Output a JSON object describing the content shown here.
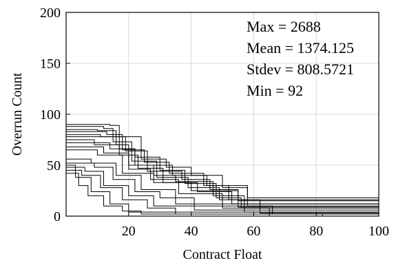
{
  "chart_data": {
    "type": "line",
    "title": "",
    "xlabel": "Contract Float",
    "ylabel": "Overrun Count",
    "xlim": [
      0,
      100
    ],
    "ylim": [
      0,
      200
    ],
    "xticks": [
      20,
      40,
      60,
      80,
      100
    ],
    "yticks": [
      0,
      50,
      100,
      150,
      200
    ],
    "grid": true,
    "annotations": [
      "Max = 2688",
      "Mean = 1374.125",
      "Stdev = 808.5721",
      "Min = 92"
    ],
    "series": [
      {
        "x": [
          0,
          3,
          14,
          17,
          22,
          30,
          38,
          48,
          56,
          65,
          100
        ],
        "y": [
          90,
          90,
          89,
          66,
          58,
          45,
          32,
          18,
          8,
          0,
          0
        ]
      },
      {
        "x": [
          0,
          5,
          12,
          15,
          24,
          32,
          40,
          50,
          58,
          66,
          82,
          100
        ],
        "y": [
          88,
          88,
          86,
          78,
          56,
          48,
          40,
          28,
          10,
          2,
          0,
          0
        ]
      },
      {
        "x": [
          0,
          2,
          10,
          16,
          20,
          28,
          35,
          47,
          57,
          100
        ],
        "y": [
          85,
          85,
          84,
          70,
          50,
          40,
          34,
          20,
          4,
          0
        ]
      },
      {
        "x": [
          0,
          6,
          13,
          18,
          25,
          33,
          44,
          52,
          62,
          100
        ],
        "y": [
          83,
          83,
          80,
          65,
          53,
          42,
          30,
          16,
          3,
          0
        ]
      },
      {
        "x": [
          0,
          4,
          11,
          19,
          26,
          37,
          46,
          55,
          100
        ],
        "y": [
          80,
          80,
          78,
          64,
          44,
          36,
          26,
          9,
          0
        ]
      },
      {
        "x": [
          0,
          8,
          15,
          21,
          29,
          39,
          49,
          100
        ],
        "y": [
          78,
          78,
          73,
          54,
          38,
          28,
          16,
          0
        ]
      },
      {
        "x": [
          0,
          3,
          9,
          17,
          23,
          31,
          42,
          53,
          100
        ],
        "y": [
          75,
          75,
          70,
          60,
          47,
          33,
          24,
          12,
          0
        ]
      },
      {
        "x": [
          0,
          7,
          14,
          22,
          34,
          45,
          58,
          100
        ],
        "y": [
          72,
          72,
          66,
          50,
          40,
          30,
          18,
          0
        ]
      },
      {
        "x": [
          0,
          5,
          12,
          20,
          27,
          36,
          50,
          100
        ],
        "y": [
          68,
          68,
          62,
          46,
          36,
          22,
          8,
          0
        ]
      },
      {
        "x": [
          0,
          4,
          10,
          18,
          28,
          40,
          55,
          100
        ],
        "y": [
          65,
          65,
          60,
          42,
          33,
          25,
          15,
          0
        ]
      },
      {
        "x": [
          0,
          2,
          8,
          16,
          24,
          35,
          100
        ],
        "y": [
          56,
          56,
          52,
          40,
          26,
          12,
          0
        ]
      },
      {
        "x": [
          0,
          3,
          9,
          15,
          22,
          30,
          41,
          100
        ],
        "y": [
          52,
          52,
          48,
          36,
          24,
          18,
          6,
          0
        ]
      },
      {
        "x": [
          0,
          1,
          6,
          12,
          20,
          28,
          100
        ],
        "y": [
          48,
          48,
          44,
          30,
          20,
          10,
          0
        ]
      },
      {
        "x": [
          0,
          2,
          5,
          11,
          18,
          26,
          35,
          100
        ],
        "y": [
          45,
          45,
          40,
          28,
          16,
          8,
          2,
          0
        ]
      },
      {
        "x": [
          0,
          1,
          3,
          8,
          14,
          20,
          100
        ],
        "y": [
          50,
          50,
          38,
          24,
          12,
          4,
          0
        ]
      },
      {
        "x": [
          0,
          2,
          4,
          7,
          12,
          18,
          24,
          100
        ],
        "y": [
          42,
          42,
          30,
          20,
          10,
          5,
          2,
          0
        ]
      }
    ]
  }
}
